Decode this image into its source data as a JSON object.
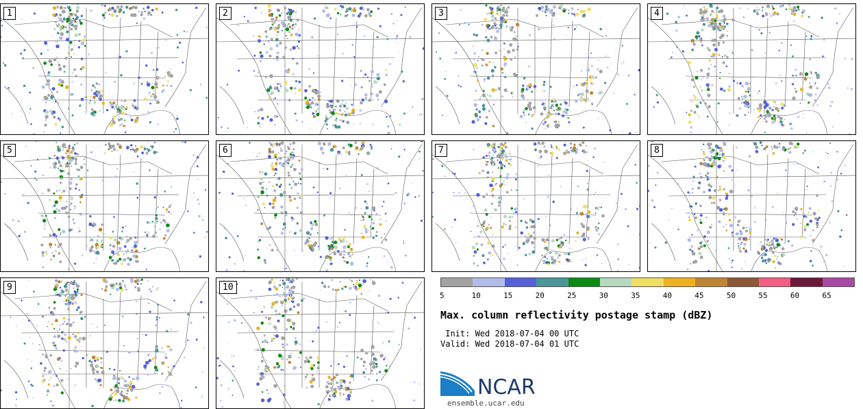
{
  "panels": [
    {
      "label": "1"
    },
    {
      "label": "2"
    },
    {
      "label": "3"
    },
    {
      "label": "4"
    },
    {
      "label": "5"
    },
    {
      "label": "6"
    },
    {
      "label": "7"
    },
    {
      "label": "8"
    },
    {
      "label": "9"
    },
    {
      "label": "10"
    }
  ],
  "legend": {
    "colors": [
      "#a3a3a3",
      "#b1bbe6",
      "#5560d9",
      "#4b9497",
      "#0c8a14",
      "#b7d9c0",
      "#f0de64",
      "#eeb121",
      "#bd8535",
      "#8b5837",
      "#f05e84",
      "#6b1937",
      "#a84aa3"
    ],
    "ticks": [
      "5",
      "10",
      "15",
      "20",
      "25",
      "30",
      "35",
      "40",
      "45",
      "50",
      "55",
      "60",
      "65"
    ]
  },
  "title": "Max. column reflectivity postage stamp (dBZ)",
  "init": " Init: Wed 2018-07-04 00 UTC",
  "valid": "Valid: Wed 2018-07-04 01 UTC",
  "logo": {
    "name": "NCAR",
    "url": "ensemble.ucar.edu"
  }
}
